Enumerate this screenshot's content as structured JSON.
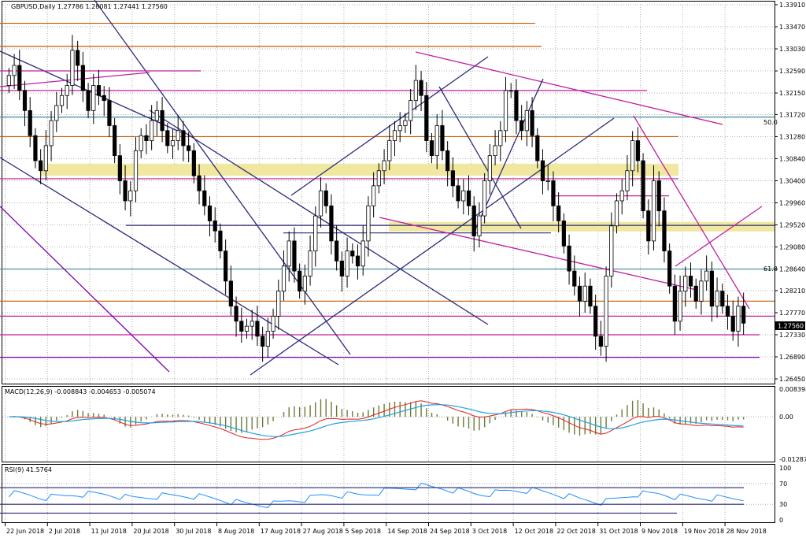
{
  "header": {
    "main": "GBPUSD,Daily  1.27786 1.28081 1.27441 1.27560",
    "macd": "MACD(12,26,9) -0.008843 -0.004653 -0.005074",
    "rsi": "RSI(9) 41.5764"
  },
  "price_axis": {
    "ticks": [
      "1.33910",
      "1.33470",
      "1.33030",
      "1.32590",
      "1.32150",
      "1.31720",
      "1.31280",
      "1.30840",
      "1.30400",
      "1.29960",
      "1.29520",
      "1.29080",
      "1.28640",
      "1.28210",
      "1.27770",
      "1.27330",
      "1.26890",
      "1.26450"
    ],
    "current": "1.27560"
  },
  "macd_axis": {
    "ticks": [
      "0.008398",
      "0.00",
      "-0.012878"
    ]
  },
  "rsi_axis": {
    "ticks": [
      "100",
      "70",
      "30",
      "0"
    ]
  },
  "fib_labels": {
    "fib50": "50.0",
    "fib618": "61.8"
  },
  "time_axis": [
    "22 Jun 2018",
    "2 Jul 2018",
    "11 Jul 2018",
    "20 Jul 2018",
    "30 Jul 2018",
    "8 Aug 2018",
    "17 Aug 2018",
    "27 Aug 2018",
    "5 Sep 2018",
    "14 Sep 2018",
    "24 Sep 2018",
    "3 Oct 2018",
    "12 Oct 2018",
    "22 Oct 2018",
    "31 Oct 2018",
    "9 Nov 2018",
    "19 Nov 2018",
    "28 Nov 2018"
  ],
  "colors": {
    "orange": "#c85a00",
    "magenta": "#c020a0",
    "navy": "#2a2a7a",
    "teal": "#3a8a9a",
    "yellow": "#f0e8a0",
    "purple": "#8000b0",
    "macd_red": "#e02020",
    "macd_signal": "#20a0e0",
    "hist": "#6a7a3a",
    "rsi": "#1e90ff"
  },
  "chart_data": {
    "type": "candlestick",
    "symbol": "GBPUSD",
    "timeframe": "Daily",
    "last_bar": {
      "open": 1.27786,
      "high": 1.28081,
      "low": 1.27441,
      "close": 1.2756
    },
    "ylim": [
      1.2645,
      1.3391
    ],
    "horizontal_levels": [
      1.3354,
      1.3308,
      1.322,
      1.3173,
      1.3128,
      1.3044,
      1.2951,
      1.28,
      1.277,
      1.2733,
      1.2688
    ],
    "fibonacci": [
      {
        "level": "50.0",
        "price": 1.3167
      },
      {
        "level": "61.8",
        "price": 1.2864
      }
    ],
    "macd": {
      "params": "12,26,9",
      "main": -0.008843,
      "signal": -0.004653,
      "histogram": -0.005074,
      "ylim": [
        -0.012878,
        0.008398
      ]
    },
    "rsi": {
      "period": 9,
      "value": 41.5764,
      "levels": [
        70,
        30
      ],
      "ylim": [
        0,
        100
      ]
    }
  }
}
